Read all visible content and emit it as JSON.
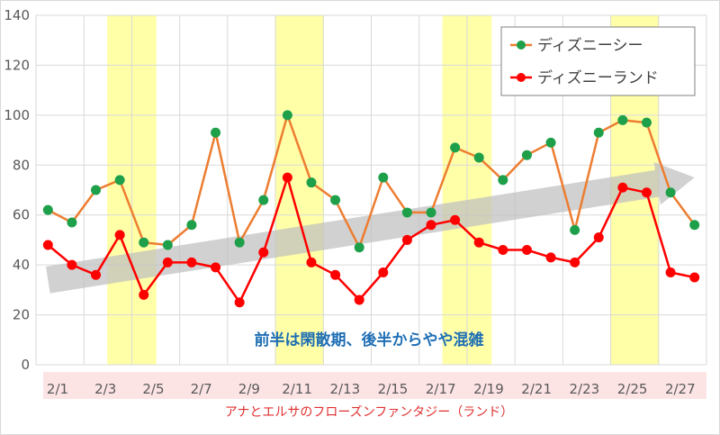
{
  "chart_data": {
    "type": "line",
    "x": [
      "2/1",
      "2/2",
      "2/3",
      "2/4",
      "2/5",
      "2/6",
      "2/7",
      "2/8",
      "2/9",
      "2/10",
      "2/11",
      "2/12",
      "2/13",
      "2/14",
      "2/15",
      "2/16",
      "2/17",
      "2/18",
      "2/19",
      "2/20",
      "2/21",
      "2/22",
      "2/23",
      "2/24",
      "2/25",
      "2/26",
      "2/27",
      "2/28"
    ],
    "x_tick_labels": [
      "2/1",
      "2/3",
      "2/5",
      "2/7",
      "2/9",
      "2/11",
      "2/13",
      "2/15",
      "2/17",
      "2/19",
      "2/21",
      "2/23",
      "2/25",
      "2/27"
    ],
    "y_ticks": [
      0,
      20,
      40,
      60,
      80,
      100,
      120,
      140
    ],
    "ylim": [
      0,
      140
    ],
    "series": [
      {
        "name": "ディズニーシー",
        "line_color": "#ed7d31",
        "marker_color": "#1ea04a",
        "values": [
          62,
          57,
          70,
          74,
          49,
          48,
          56,
          93,
          49,
          66,
          100,
          73,
          66,
          47,
          75,
          61,
          61,
          87,
          83,
          74,
          84,
          89,
          54,
          93,
          98,
          97,
          69,
          56
        ]
      },
      {
        "name": "ディズニーランド",
        "line_color": "#ff0000",
        "marker_color": "#ff0000",
        "values": [
          48,
          40,
          36,
          52,
          28,
          41,
          41,
          39,
          25,
          45,
          75,
          41,
          36,
          26,
          37,
          50,
          56,
          58,
          49,
          46,
          46,
          43,
          41,
          51,
          71,
          69,
          37,
          35
        ]
      }
    ],
    "highlight_spans": [
      {
        "from": "2/4",
        "to": "2/5"
      },
      {
        "from": "2/11",
        "to": "2/12"
      },
      {
        "from": "2/18",
        "to": "2/19"
      },
      {
        "from": "2/25",
        "to": "2/26"
      }
    ],
    "highlight_color": "#ffff99",
    "trend_arrow": {
      "from_x": "2/1",
      "from_y": 34,
      "to_x": "2/28",
      "to_y": 75,
      "color": "#bfbfbf"
    },
    "annotation": "前半は閑散期、後半からやや混雑",
    "footer": "アナとエルサのフローズンファンタジー（ランド）",
    "legend_position": "top-right",
    "grid": true
  }
}
